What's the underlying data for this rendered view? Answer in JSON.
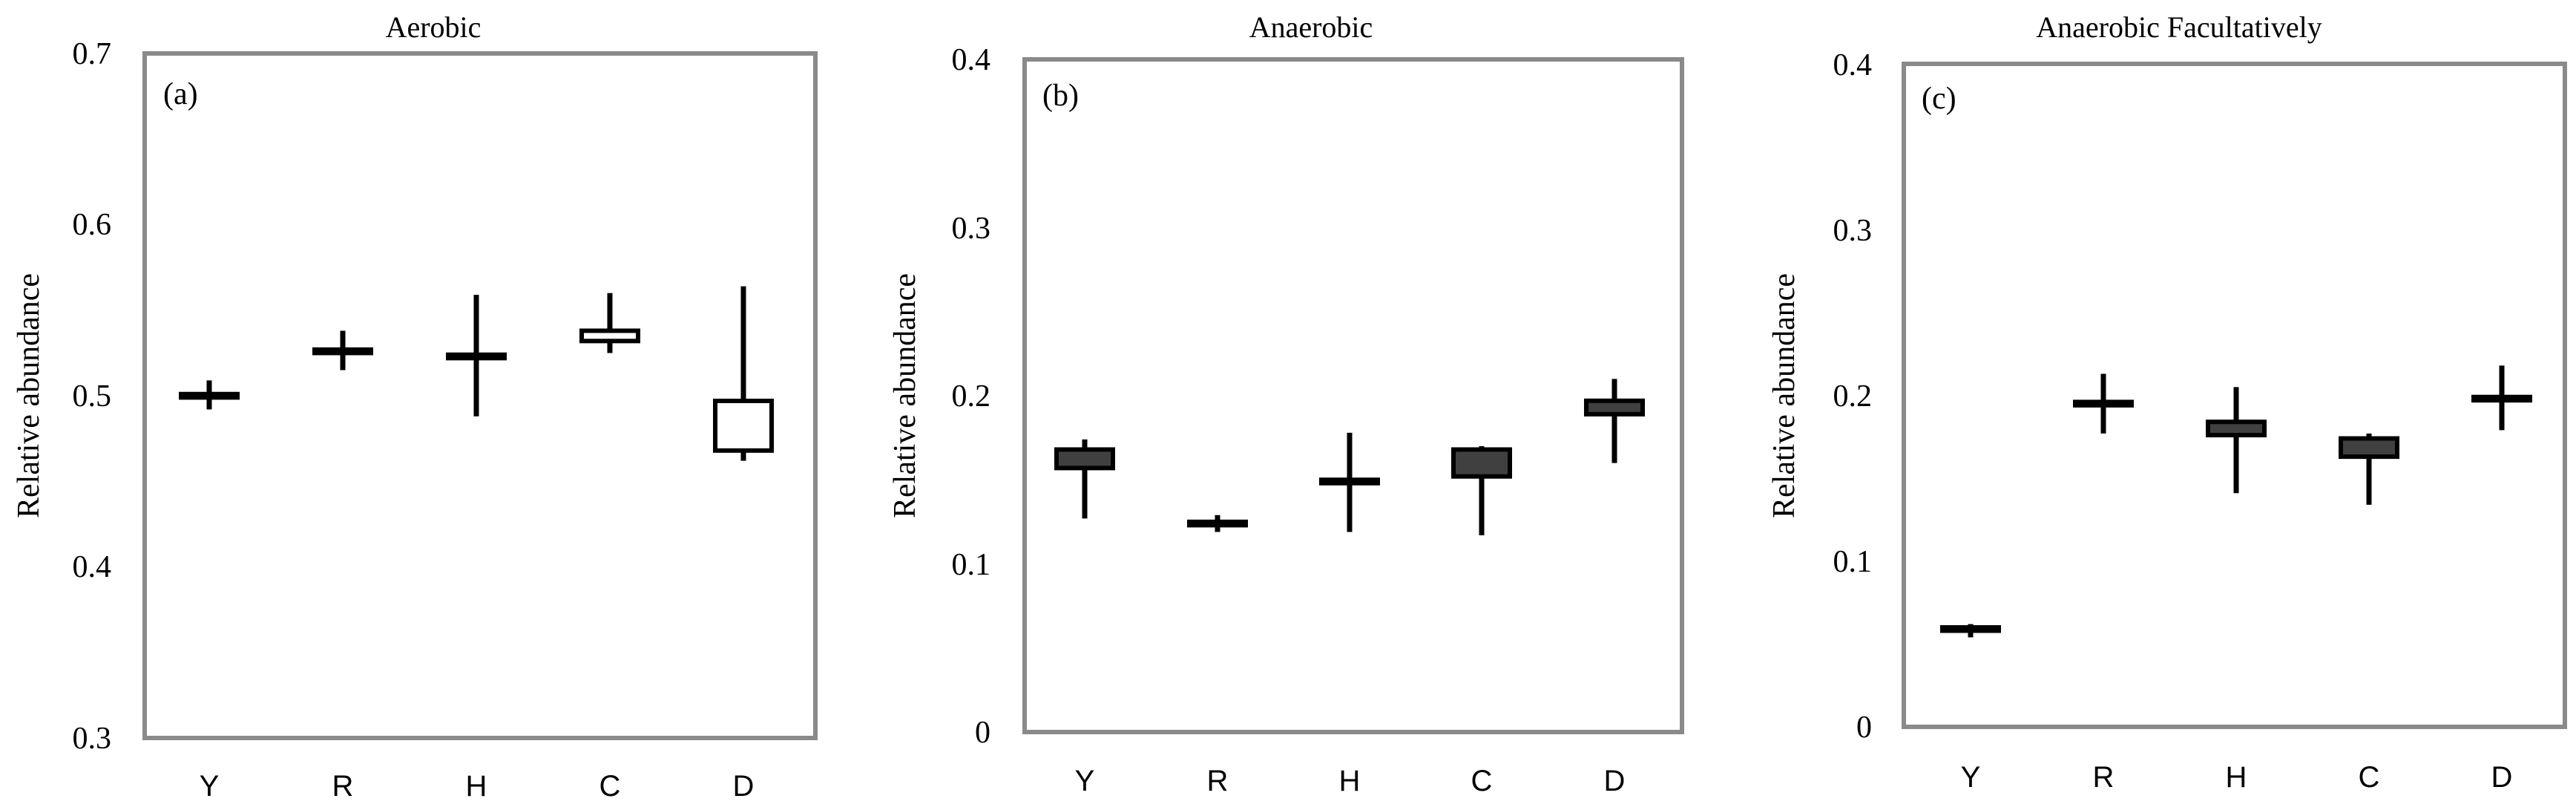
{
  "chart_data": [
    {
      "type": "boxplot",
      "panel_label": "(a)",
      "title": "Aerobic",
      "ylabel": "Relative abundance",
      "xlabel": "",
      "ylim": [
        0.3,
        0.7
      ],
      "yticks": [
        "0.3",
        "0.4",
        "0.5",
        "0.6",
        "0.7"
      ],
      "categories": [
        "Y",
        "R",
        "H",
        "C",
        "D"
      ],
      "box_color": "#ffffff",
      "boxes": [
        {
          "min": 0.495,
          "q1": 0.502,
          "q3": 0.504,
          "max": 0.512
        },
        {
          "min": 0.518,
          "q1": 0.528,
          "q3": 0.53,
          "max": 0.541
        },
        {
          "min": 0.491,
          "q1": 0.525,
          "q3": 0.527,
          "max": 0.562
        },
        {
          "min": 0.528,
          "q1": 0.535,
          "q3": 0.541,
          "max": 0.563
        },
        {
          "min": 0.465,
          "q1": 0.471,
          "q3": 0.5,
          "max": 0.567
        }
      ]
    },
    {
      "type": "boxplot",
      "panel_label": "(b)",
      "title": "Anaerobic",
      "ylabel": "Relative abundance",
      "xlabel": "",
      "ylim": [
        0,
        0.4
      ],
      "yticks": [
        "0",
        "0.1",
        "0.2",
        "0.3",
        "0.4"
      ],
      "categories": [
        "Y",
        "R",
        "H",
        "C",
        "D"
      ],
      "box_color": "#404040",
      "boxes": [
        {
          "min": 0.127,
          "q1": 0.157,
          "q3": 0.168,
          "max": 0.174
        },
        {
          "min": 0.119,
          "q1": 0.123,
          "q3": 0.125,
          "max": 0.129
        },
        {
          "min": 0.119,
          "q1": 0.148,
          "q3": 0.15,
          "max": 0.178
        },
        {
          "min": 0.117,
          "q1": 0.152,
          "q3": 0.168,
          "max": 0.17
        },
        {
          "min": 0.16,
          "q1": 0.189,
          "q3": 0.197,
          "max": 0.21
        }
      ]
    },
    {
      "type": "boxplot",
      "panel_label": "(c)",
      "title": "Anaerobic  Facultatively",
      "ylabel": "Relative abundance",
      "xlabel": "",
      "ylim": [
        0,
        0.4
      ],
      "yticks": [
        "0",
        "0.1",
        "0.2",
        "0.3",
        "0.4"
      ],
      "categories": [
        "Y",
        "R",
        "H",
        "C",
        "D"
      ],
      "box_color": "#404040",
      "boxes": [
        {
          "min": 0.054,
          "q1": 0.058,
          "q3": 0.06,
          "max": 0.062
        },
        {
          "min": 0.177,
          "q1": 0.194,
          "q3": 0.196,
          "max": 0.213
        },
        {
          "min": 0.141,
          "q1": 0.176,
          "q3": 0.184,
          "max": 0.205
        },
        {
          "min": 0.134,
          "q1": 0.163,
          "q3": 0.174,
          "max": 0.177
        },
        {
          "min": 0.179,
          "q1": 0.197,
          "q3": 0.199,
          "max": 0.218
        }
      ]
    }
  ]
}
